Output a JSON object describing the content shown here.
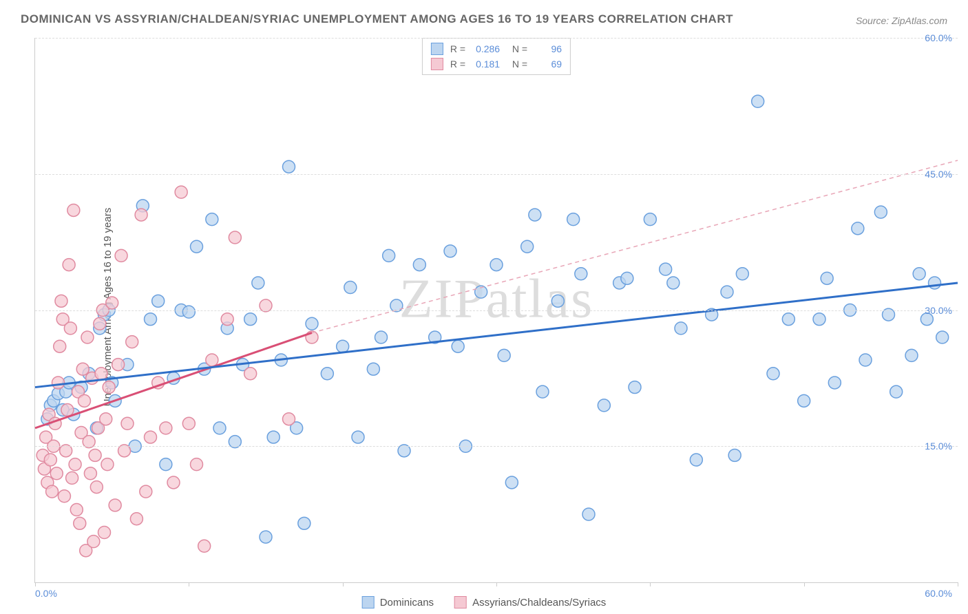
{
  "chart": {
    "type": "scatter",
    "title": "DOMINICAN VS ASSYRIAN/CHALDEAN/SYRIAC UNEMPLOYMENT AMONG AGES 16 TO 19 YEARS CORRELATION CHART",
    "source": "Source: ZipAtlas.com",
    "ylabel": "Unemployment Among Ages 16 to 19 years",
    "watermark": "ZIPatlas",
    "background_color": "#ffffff",
    "grid_color": "#dddddd",
    "axis_color": "#cccccc",
    "tick_label_color": "#5b8dd8",
    "xlim": [
      0,
      60
    ],
    "ylim": [
      0,
      60
    ],
    "xtick_labels": [
      {
        "pos": 0,
        "label": "0.0%"
      },
      {
        "pos": 60,
        "label": "60.0%"
      }
    ],
    "xtick_positions": [
      0,
      10,
      20,
      30,
      40,
      50,
      60
    ],
    "ytick_labels": [
      {
        "pos": 15,
        "label": "15.0%"
      },
      {
        "pos": 30,
        "label": "30.0%"
      },
      {
        "pos": 45,
        "label": "45.0%"
      },
      {
        "pos": 60,
        "label": "60.0%"
      }
    ],
    "series": [
      {
        "name": "Dominicans",
        "color_fill": "#bcd5f0",
        "color_stroke": "#6aa0de",
        "marker_radius": 9,
        "marker_opacity": 0.75,
        "r_value": "0.286",
        "n_value": "96",
        "trend": {
          "x1": 0,
          "y1": 21.5,
          "x2": 60,
          "y2": 33.0,
          "color": "#2f6fc8",
          "width": 3,
          "dash": "none"
        },
        "trend_ext": null,
        "points": [
          [
            1.0,
            19.5
          ],
          [
            1.2,
            20.0
          ],
          [
            1.5,
            20.8
          ],
          [
            1.8,
            19.0
          ],
          [
            2.0,
            21.0
          ],
          [
            2.2,
            22.0
          ],
          [
            2.5,
            18.5
          ],
          [
            0.8,
            18.0
          ],
          [
            3.0,
            21.5
          ],
          [
            3.5,
            23.0
          ],
          [
            4.0,
            17.0
          ],
          [
            4.2,
            28.0
          ],
          [
            4.5,
            29.5
          ],
          [
            4.8,
            30.0
          ],
          [
            5.0,
            22.0
          ],
          [
            5.2,
            20.0
          ],
          [
            6.0,
            24.0
          ],
          [
            6.5,
            15.0
          ],
          [
            7.0,
            41.5
          ],
          [
            7.5,
            29.0
          ],
          [
            8.0,
            31.0
          ],
          [
            8.5,
            13.0
          ],
          [
            9.0,
            22.5
          ],
          [
            9.5,
            30.0
          ],
          [
            10.0,
            29.8
          ],
          [
            10.5,
            37.0
          ],
          [
            11.0,
            23.5
          ],
          [
            11.5,
            40.0
          ],
          [
            12.0,
            17.0
          ],
          [
            12.5,
            28.0
          ],
          [
            13.0,
            15.5
          ],
          [
            13.5,
            24.0
          ],
          [
            14.0,
            29.0
          ],
          [
            14.5,
            33.0
          ],
          [
            15.0,
            5.0
          ],
          [
            15.5,
            16.0
          ],
          [
            16.0,
            24.5
          ],
          [
            16.5,
            45.8
          ],
          [
            17.0,
            17.0
          ],
          [
            17.5,
            6.5
          ],
          [
            18.0,
            28.5
          ],
          [
            19.0,
            23.0
          ],
          [
            20.0,
            26.0
          ],
          [
            20.5,
            32.5
          ],
          [
            21.0,
            16.0
          ],
          [
            22.0,
            23.5
          ],
          [
            22.5,
            27.0
          ],
          [
            23.0,
            36.0
          ],
          [
            23.5,
            30.5
          ],
          [
            24.0,
            14.5
          ],
          [
            25.0,
            35.0
          ],
          [
            26.0,
            27.0
          ],
          [
            27.0,
            36.5
          ],
          [
            27.5,
            26.0
          ],
          [
            28.0,
            15.0
          ],
          [
            29.0,
            32.0
          ],
          [
            30.0,
            35.0
          ],
          [
            30.5,
            25.0
          ],
          [
            31.0,
            11.0
          ],
          [
            32.0,
            37.0
          ],
          [
            32.5,
            40.5
          ],
          [
            33.0,
            21.0
          ],
          [
            34.0,
            31.0
          ],
          [
            35.0,
            40.0
          ],
          [
            35.5,
            34.0
          ],
          [
            36.0,
            7.5
          ],
          [
            37.0,
            19.5
          ],
          [
            38.0,
            33.0
          ],
          [
            38.5,
            33.5
          ],
          [
            39.0,
            21.5
          ],
          [
            40.0,
            40.0
          ],
          [
            41.0,
            34.5
          ],
          [
            41.5,
            33.0
          ],
          [
            42.0,
            28.0
          ],
          [
            43.0,
            13.5
          ],
          [
            44.0,
            29.5
          ],
          [
            45.0,
            32.0
          ],
          [
            45.5,
            14.0
          ],
          [
            46.0,
            34.0
          ],
          [
            47.0,
            53.0
          ],
          [
            48.0,
            23.0
          ],
          [
            49.0,
            29.0
          ],
          [
            50.0,
            20.0
          ],
          [
            51.0,
            29.0
          ],
          [
            51.5,
            33.5
          ],
          [
            52.0,
            22.0
          ],
          [
            53.0,
            30.0
          ],
          [
            53.5,
            39.0
          ],
          [
            54.0,
            24.5
          ],
          [
            55.0,
            40.8
          ],
          [
            55.5,
            29.5
          ],
          [
            56.0,
            21.0
          ],
          [
            57.0,
            25.0
          ],
          [
            57.5,
            34.0
          ],
          [
            58.0,
            29.0
          ],
          [
            58.5,
            33.0
          ],
          [
            59.0,
            27.0
          ]
        ]
      },
      {
        "name": "Assyrians/Chaldeans/Syriacs",
        "color_fill": "#f5c9d3",
        "color_stroke": "#e08aa0",
        "marker_radius": 9,
        "marker_opacity": 0.75,
        "r_value": "0.181",
        "n_value": "69",
        "trend": {
          "x1": 0,
          "y1": 17.0,
          "x2": 18,
          "y2": 27.5,
          "color": "#d94f75",
          "width": 3,
          "dash": "none"
        },
        "trend_ext": {
          "x1": 18,
          "y1": 27.5,
          "x2": 60,
          "y2": 46.5,
          "color": "#e8a5b6",
          "width": 1.5,
          "dash": "6,5"
        },
        "points": [
          [
            0.5,
            14.0
          ],
          [
            0.6,
            12.5
          ],
          [
            0.7,
            16.0
          ],
          [
            0.8,
            11.0
          ],
          [
            0.9,
            18.5
          ],
          [
            1.0,
            13.5
          ],
          [
            1.1,
            10.0
          ],
          [
            1.2,
            15.0
          ],
          [
            1.3,
            17.5
          ],
          [
            1.4,
            12.0
          ],
          [
            1.5,
            22.0
          ],
          [
            1.6,
            26.0
          ],
          [
            1.7,
            31.0
          ],
          [
            1.8,
            29.0
          ],
          [
            1.9,
            9.5
          ],
          [
            2.0,
            14.5
          ],
          [
            2.1,
            19.0
          ],
          [
            2.2,
            35.0
          ],
          [
            2.3,
            28.0
          ],
          [
            2.4,
            11.5
          ],
          [
            2.5,
            41.0
          ],
          [
            2.6,
            13.0
          ],
          [
            2.7,
            8.0
          ],
          [
            2.8,
            21.0
          ],
          [
            2.9,
            6.5
          ],
          [
            3.0,
            16.5
          ],
          [
            3.1,
            23.5
          ],
          [
            3.2,
            20.0
          ],
          [
            3.3,
            3.5
          ],
          [
            3.4,
            27.0
          ],
          [
            3.5,
            15.5
          ],
          [
            3.6,
            12.0
          ],
          [
            3.7,
            22.5
          ],
          [
            3.8,
            4.5
          ],
          [
            3.9,
            14.0
          ],
          [
            4.0,
            10.5
          ],
          [
            4.1,
            17.0
          ],
          [
            4.2,
            28.5
          ],
          [
            4.3,
            23.0
          ],
          [
            4.4,
            30.0
          ],
          [
            4.5,
            5.5
          ],
          [
            4.6,
            18.0
          ],
          [
            4.7,
            13.0
          ],
          [
            4.8,
            21.5
          ],
          [
            5.0,
            30.8
          ],
          [
            5.2,
            8.5
          ],
          [
            5.4,
            24.0
          ],
          [
            5.6,
            36.0
          ],
          [
            5.8,
            14.5
          ],
          [
            6.0,
            17.5
          ],
          [
            6.3,
            26.5
          ],
          [
            6.6,
            7.0
          ],
          [
            6.9,
            40.5
          ],
          [
            7.2,
            10.0
          ],
          [
            7.5,
            16.0
          ],
          [
            8.0,
            22.0
          ],
          [
            8.5,
            17.0
          ],
          [
            9.0,
            11.0
          ],
          [
            9.5,
            43.0
          ],
          [
            10.0,
            17.5
          ],
          [
            10.5,
            13.0
          ],
          [
            11.0,
            4.0
          ],
          [
            11.5,
            24.5
          ],
          [
            12.5,
            29.0
          ],
          [
            13.0,
            38.0
          ],
          [
            14.0,
            23.0
          ],
          [
            15.0,
            30.5
          ],
          [
            16.5,
            18.0
          ],
          [
            18.0,
            27.0
          ]
        ]
      }
    ]
  }
}
